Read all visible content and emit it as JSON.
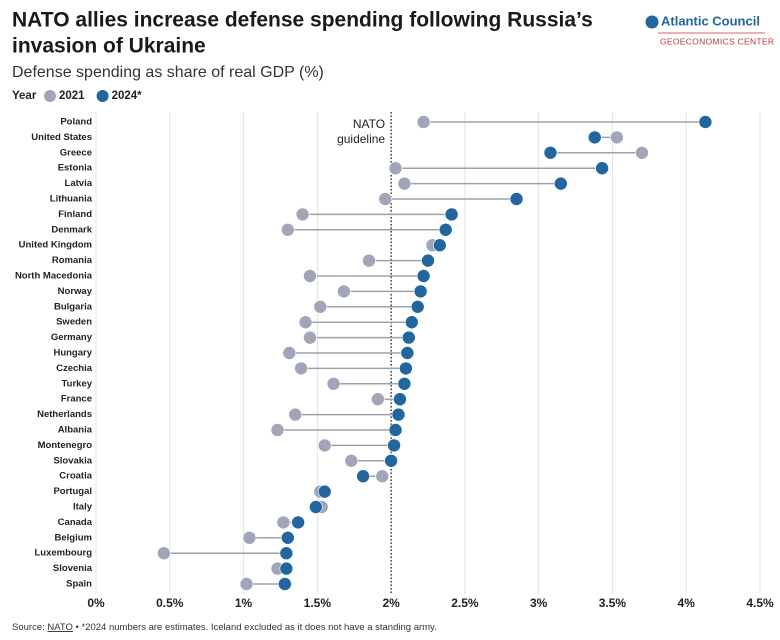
{
  "chart_data": {
    "type": "dumbbell",
    "title": [
      "NATO allies increase defense spending following Russia’s",
      "invasion of Ukraine"
    ],
    "subtitle": "Defense spending as share of real GDP (%)",
    "legend_title": "Year",
    "branding": {
      "name": "Atlantic Council",
      "unit": "GEOECONOMICS CENTER"
    },
    "categories": [
      "Poland",
      "United States",
      "Greece",
      "Estonia",
      "Latvia",
      "Lithuania",
      "Finland",
      "Denmark",
      "United Kingdom",
      "Romania",
      "North Macedonia",
      "Norway",
      "Bulgaria",
      "Sweden",
      "Germany",
      "Hungary",
      "Czechia",
      "Turkey",
      "France",
      "Netherlands",
      "Albania",
      "Montenegro",
      "Slovakia",
      "Croatia",
      "Portugal",
      "Italy",
      "Canada",
      "Belgium",
      "Luxembourg",
      "Slovenia",
      "Spain"
    ],
    "series": [
      {
        "name": "2021",
        "color": "#a2a5b9",
        "values": [
          2.22,
          3.53,
          3.7,
          2.03,
          2.09,
          1.96,
          1.4,
          1.3,
          2.28,
          1.85,
          1.45,
          1.68,
          1.52,
          1.42,
          1.45,
          1.31,
          1.39,
          1.61,
          1.91,
          1.35,
          1.23,
          1.55,
          1.73,
          1.94,
          1.52,
          1.53,
          1.27,
          1.04,
          0.46,
          1.23,
          1.02
        ]
      },
      {
        "name": "2024*",
        "color": "#2166a0",
        "values": [
          4.13,
          3.38,
          3.08,
          3.43,
          3.15,
          2.85,
          2.41,
          2.37,
          2.33,
          2.25,
          2.22,
          2.2,
          2.18,
          2.14,
          2.12,
          2.11,
          2.1,
          2.09,
          2.06,
          2.05,
          2.03,
          2.02,
          2.0,
          1.81,
          1.55,
          1.49,
          1.37,
          1.3,
          1.29,
          1.29,
          1.28
        ]
      }
    ],
    "connector_color": "#9aa3ad",
    "xlim": [
      0,
      4.5
    ],
    "xticks": [
      {
        "value": 0,
        "label": "0%"
      },
      {
        "value": 0.5,
        "label": "0.5%"
      },
      {
        "value": 1,
        "label": "1%"
      },
      {
        "value": 1.5,
        "label": "1.5%"
      },
      {
        "value": 2,
        "label": "2%"
      },
      {
        "value": 2.5,
        "label": "2.5%"
      },
      {
        "value": 3,
        "label": "3%"
      },
      {
        "value": 3.5,
        "label": "3.5%"
      },
      {
        "value": 4,
        "label": "4%"
      },
      {
        "value": 4.5,
        "label": "4.5%"
      }
    ],
    "grid": true,
    "reference_line": {
      "value": 2,
      "label": [
        "NATO",
        "guideline"
      ]
    },
    "footer": {
      "prefix": "Source:",
      "link": "NATO",
      "note": "• *2024 numbers are estimates. Iceland excluded as it does not have a standing army."
    }
  }
}
